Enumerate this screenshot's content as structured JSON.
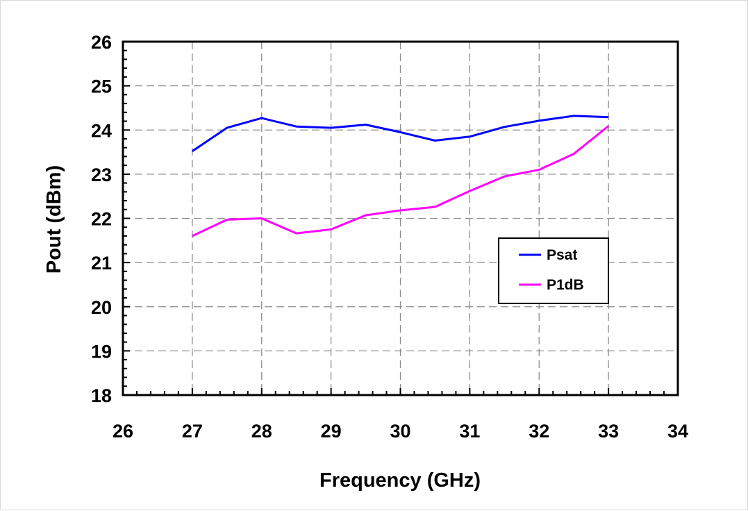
{
  "chart_data": {
    "type": "line",
    "title": "",
    "xlabel": "Frequency (GHz)",
    "ylabel": "Pout (dBm)",
    "xlim": [
      26,
      34
    ],
    "ylim": [
      18,
      26
    ],
    "xticks": [
      "26",
      "27",
      "28",
      "29",
      "30",
      "31",
      "32",
      "33",
      "34"
    ],
    "yticks": [
      "18",
      "19",
      "20",
      "21",
      "22",
      "23",
      "24",
      "25",
      "26"
    ],
    "grid": true,
    "legend_position": "right",
    "series": [
      {
        "name": "Psat",
        "color": "#0000ff",
        "x": [
          27,
          27.5,
          28,
          28.5,
          29,
          29.5,
          30,
          30.5,
          31,
          31.5,
          32,
          32.5,
          33
        ],
        "y": [
          23.52,
          24.05,
          24.27,
          24.08,
          24.05,
          24.12,
          23.95,
          23.76,
          23.85,
          24.07,
          24.21,
          24.32,
          24.29
        ]
      },
      {
        "name": "P1dB",
        "color": "#ff00ff",
        "x": [
          27,
          27.5,
          28,
          28.5,
          29,
          29.5,
          30,
          30.5,
          31,
          31.5,
          32,
          32.5,
          33
        ],
        "y": [
          21.6,
          21.97,
          22.0,
          21.66,
          21.75,
          22.07,
          22.18,
          22.26,
          22.62,
          22.95,
          23.1,
          23.46,
          24.09
        ]
      }
    ]
  }
}
